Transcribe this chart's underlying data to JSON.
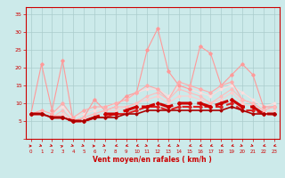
{
  "background_color": "#cceaea",
  "grid_color": "#aacccc",
  "text_color": "#cc0000",
  "xlabel": "Vent moyen/en rafales ( km/h )",
  "x_ticks": [
    0,
    1,
    2,
    3,
    4,
    5,
    6,
    7,
    8,
    9,
    10,
    11,
    12,
    13,
    14,
    15,
    16,
    17,
    18,
    19,
    20,
    21,
    22,
    23
  ],
  "ylim": [
    0,
    37
  ],
  "xlim": [
    -0.5,
    23.5
  ],
  "y_ticks": [
    0,
    5,
    10,
    15,
    20,
    25,
    30,
    35
  ],
  "series": [
    {
      "x": [
        0,
        1,
        2,
        3,
        4,
        5,
        6,
        7,
        8,
        9,
        10,
        11,
        12,
        13,
        14,
        15,
        16,
        17,
        18,
        19,
        20,
        21,
        22,
        23
      ],
      "y": [
        7,
        21,
        8,
        22,
        5,
        6,
        11,
        8,
        9,
        12,
        13,
        25,
        31,
        19,
        15,
        14,
        26,
        24,
        15,
        18,
        21,
        18,
        9,
        9
      ],
      "color": "#ff9999",
      "lw": 0.8,
      "marker": "D",
      "ms": 1.8,
      "zorder": 3
    },
    {
      "x": [
        0,
        1,
        2,
        3,
        4,
        5,
        6,
        7,
        8,
        9,
        10,
        11,
        12,
        13,
        14,
        15,
        16,
        17,
        18,
        19,
        20,
        21,
        22,
        23
      ],
      "y": [
        7,
        8,
        7,
        10,
        6,
        8,
        9,
        9,
        10,
        11,
        13,
        15,
        14,
        11,
        16,
        15,
        14,
        13,
        15,
        16,
        11,
        10,
        8,
        9
      ],
      "color": "#ffaaaa",
      "lw": 0.8,
      "marker": "D",
      "ms": 1.8,
      "zorder": 3
    },
    {
      "x": [
        0,
        1,
        2,
        3,
        4,
        5,
        6,
        7,
        8,
        9,
        10,
        11,
        12,
        13,
        14,
        15,
        16,
        17,
        18,
        19,
        20,
        21,
        22,
        23
      ],
      "y": [
        7,
        7,
        6,
        8,
        5,
        6,
        7,
        8,
        9,
        9,
        10,
        12,
        13,
        11,
        14,
        13,
        12,
        10,
        12,
        14,
        11,
        10,
        8,
        9
      ],
      "color": "#ffbbbb",
      "lw": 0.8,
      "marker": "D",
      "ms": 1.5,
      "zorder": 3
    },
    {
      "x": [
        0,
        1,
        2,
        3,
        4,
        5,
        6,
        7,
        8,
        9,
        10,
        11,
        12,
        13,
        14,
        15,
        16,
        17,
        18,
        19,
        20,
        21,
        22,
        23
      ],
      "y": [
        7,
        7,
        6,
        7,
        5,
        6,
        7,
        8,
        8,
        9,
        10,
        11,
        12,
        10,
        12,
        12,
        11,
        10,
        11,
        13,
        10,
        9,
        7,
        8
      ],
      "color": "#ffcccc",
      "lw": 0.8,
      "marker": "D",
      "ms": 1.5,
      "zorder": 2
    },
    {
      "x": [
        0,
        1,
        2,
        3,
        4,
        5,
        6,
        7,
        8,
        9,
        10,
        11,
        12,
        13,
        14,
        15,
        16,
        17,
        18,
        19,
        20,
        21,
        22,
        23
      ],
      "y": [
        7,
        8,
        7,
        9,
        6,
        7,
        8,
        9,
        10,
        11,
        13,
        14,
        14,
        12,
        15,
        14,
        13,
        12,
        14,
        15,
        13,
        11,
        9,
        10
      ],
      "color": "#ffdddd",
      "lw": 0.8,
      "marker": "D",
      "ms": 1.5,
      "zorder": 2
    },
    {
      "x": [
        0,
        1,
        2,
        3,
        4,
        5,
        6,
        7,
        8,
        9,
        10,
        11,
        12,
        13,
        14,
        15,
        16,
        17,
        18,
        19,
        20,
        21,
        22,
        23
      ],
      "y": [
        7,
        7,
        6,
        6,
        5,
        5,
        6,
        7,
        7,
        8,
        9,
        9,
        10,
        9,
        10,
        10,
        10,
        9,
        10,
        11,
        9,
        9,
        7,
        7
      ],
      "color": "#cc0000",
      "lw": 2.2,
      "marker": "D",
      "ms": 2.0,
      "zorder": 5,
      "dashes": [
        5,
        2
      ]
    },
    {
      "x": [
        0,
        1,
        2,
        3,
        4,
        5,
        6,
        7,
        8,
        9,
        10,
        11,
        12,
        13,
        14,
        15,
        16,
        17,
        18,
        19,
        20,
        21,
        22,
        23
      ],
      "y": [
        7,
        7,
        6,
        6,
        5,
        5,
        6,
        6,
        7,
        7,
        8,
        9,
        9,
        8,
        9,
        9,
        9,
        9,
        9,
        10,
        8,
        8,
        7,
        7
      ],
      "color": "#dd2222",
      "lw": 1.5,
      "marker": "D",
      "ms": 1.8,
      "zorder": 4,
      "dashes": [
        4,
        2
      ]
    },
    {
      "x": [
        0,
        1,
        2,
        3,
        4,
        5,
        6,
        7,
        8,
        9,
        10,
        11,
        12,
        13,
        14,
        15,
        16,
        17,
        18,
        19,
        20,
        21,
        22,
        23
      ],
      "y": [
        7,
        7,
        6,
        6,
        5,
        5,
        6,
        6,
        6,
        7,
        7,
        8,
        8,
        8,
        8,
        8,
        8,
        8,
        8,
        9,
        8,
        7,
        7,
        7
      ],
      "color": "#aa0000",
      "lw": 1.2,
      "marker": "D",
      "ms": 1.5,
      "zorder": 6
    }
  ],
  "arrow_color": "#cc0000",
  "arrow_angles": [
    90,
    135,
    135,
    45,
    135,
    135,
    90,
    135,
    225,
    225,
    225,
    135,
    225,
    225,
    135,
    225,
    225,
    225,
    225,
    225,
    135,
    135,
    225,
    225
  ]
}
